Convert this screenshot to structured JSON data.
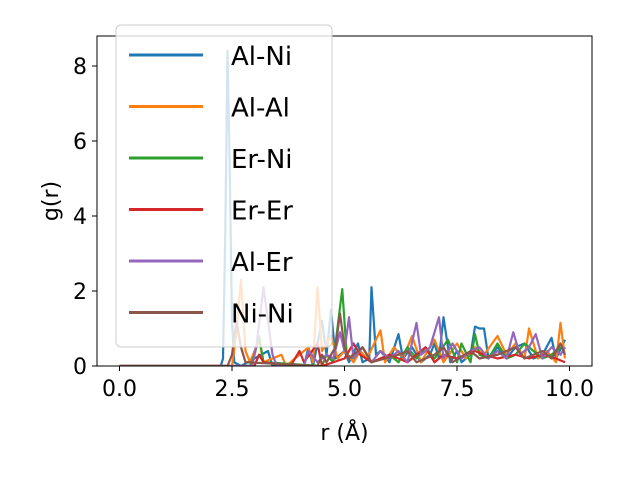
{
  "chart_data": {
    "type": "line",
    "xlabel": "r (Å)",
    "ylabel": "g(r)",
    "xlim": [
      -0.5,
      10.5
    ],
    "ylim": [
      0,
      8.8
    ],
    "xticks": [
      0.0,
      2.5,
      5.0,
      7.5,
      10.0
    ],
    "xtick_labels": [
      "0.0",
      "2.5",
      "5.0",
      "7.5",
      "10.0"
    ],
    "yticks": [
      0,
      2,
      4,
      6,
      8
    ],
    "ytick_labels": [
      "0",
      "2",
      "4",
      "6",
      "8"
    ],
    "grid": false,
    "legend_position": "upper-left",
    "series": [
      {
        "name": "Al-Ni",
        "color": "#1f77b4",
        "points": [
          [
            0,
            0
          ],
          [
            2.25,
            0
          ],
          [
            2.3,
            0.2
          ],
          [
            2.35,
            3.5
          ],
          [
            2.4,
            8.4
          ],
          [
            2.45,
            5.2
          ],
          [
            2.5,
            1.2
          ],
          [
            2.55,
            0.1
          ],
          [
            2.7,
            0
          ],
          [
            3.3,
            0.4
          ],
          [
            3.4,
            0
          ],
          [
            4.1,
            0
          ],
          [
            4.2,
            0.5
          ],
          [
            4.3,
            0
          ],
          [
            4.5,
            1.2
          ],
          [
            4.6,
            0.3
          ],
          [
            4.7,
            1.5
          ],
          [
            4.8,
            0.2
          ],
          [
            5.0,
            0.4
          ],
          [
            5.1,
            0.1
          ],
          [
            5.3,
            0.6
          ],
          [
            5.4,
            0.1
          ],
          [
            5.55,
            0.2
          ],
          [
            5.6,
            2.1
          ],
          [
            5.7,
            0.3
          ],
          [
            5.8,
            0.4
          ],
          [
            6.0,
            0.1
          ],
          [
            6.2,
            0.85
          ],
          [
            6.3,
            0.2
          ],
          [
            6.5,
            0.5
          ],
          [
            6.7,
            0.1
          ],
          [
            6.9,
            0.3
          ],
          [
            7.0,
            0.6
          ],
          [
            7.1,
            0.2
          ],
          [
            7.2,
            1.3
          ],
          [
            7.35,
            0.1
          ],
          [
            7.5,
            0.4
          ],
          [
            7.6,
            0.1
          ],
          [
            7.8,
            0.3
          ],
          [
            7.9,
            1.05
          ],
          [
            8.0,
            1.0
          ],
          [
            8.1,
            1.0
          ],
          [
            8.2,
            0.2
          ],
          [
            8.4,
            0.5
          ],
          [
            8.6,
            0.2
          ],
          [
            8.8,
            0.5
          ],
          [
            9.0,
            0.6
          ],
          [
            9.2,
            0.2
          ],
          [
            9.4,
            0.3
          ],
          [
            9.6,
            0.75
          ],
          [
            9.7,
            0.2
          ],
          [
            9.9,
            0.7
          ]
        ]
      },
      {
        "name": "Al-Al",
        "color": "#ff7f0e",
        "points": [
          [
            0,
            0
          ],
          [
            2.5,
            0
          ],
          [
            2.6,
            0.9
          ],
          [
            2.7,
            2.3
          ],
          [
            2.8,
            0.4
          ],
          [
            2.9,
            0.1
          ],
          [
            3.1,
            0.7
          ],
          [
            3.2,
            0.1
          ],
          [
            3.6,
            0.3
          ],
          [
            3.7,
            0
          ],
          [
            4.2,
            0.5
          ],
          [
            4.3,
            0.1
          ],
          [
            4.4,
            2.1
          ],
          [
            4.5,
            0.4
          ],
          [
            4.7,
            0.8
          ],
          [
            4.85,
            0.2
          ],
          [
            5.0,
            0.4
          ],
          [
            5.2,
            0.1
          ],
          [
            5.35,
            0.4
          ],
          [
            5.5,
            0.2
          ],
          [
            5.8,
            0.95
          ],
          [
            5.9,
            0.1
          ],
          [
            6.1,
            0.5
          ],
          [
            6.3,
            0.2
          ],
          [
            6.5,
            0.8
          ],
          [
            6.7,
            0.1
          ],
          [
            6.9,
            0.5
          ],
          [
            7.0,
            0.7
          ],
          [
            7.2,
            0.1
          ],
          [
            7.5,
            0.6
          ],
          [
            7.7,
            0.2
          ],
          [
            7.9,
            0.5
          ],
          [
            8.1,
            0.3
          ],
          [
            8.4,
            0.8
          ],
          [
            8.6,
            0.3
          ],
          [
            8.8,
            0.6
          ],
          [
            9.0,
            0.2
          ],
          [
            9.1,
            1.0
          ],
          [
            9.3,
            0.2
          ],
          [
            9.5,
            0.4
          ],
          [
            9.7,
            0.1
          ],
          [
            9.8,
            1.15
          ],
          [
            9.9,
            0.2
          ]
        ]
      },
      {
        "name": "Er-Ni",
        "color": "#2ca02c",
        "points": [
          [
            0,
            0
          ],
          [
            2.9,
            0
          ],
          [
            3.0,
            0.3
          ],
          [
            3.1,
            0.8
          ],
          [
            3.2,
            0.1
          ],
          [
            4.5,
            0
          ],
          [
            4.6,
            0.3
          ],
          [
            4.75,
            0.1
          ],
          [
            4.95,
            2.05
          ],
          [
            5.05,
            0.3
          ],
          [
            5.2,
            0.2
          ],
          [
            5.4,
            0.5
          ],
          [
            5.6,
            0.1
          ],
          [
            6.0,
            0.3
          ],
          [
            6.2,
            0.1
          ],
          [
            6.4,
            0.5
          ],
          [
            6.6,
            0.2
          ],
          [
            6.8,
            0.5
          ],
          [
            7.0,
            0.2
          ],
          [
            7.3,
            0.7
          ],
          [
            7.5,
            0.1
          ],
          [
            7.6,
            0.6
          ],
          [
            7.8,
            0.1
          ],
          [
            7.9,
            0.85
          ],
          [
            8.0,
            0.3
          ],
          [
            8.2,
            0.2
          ],
          [
            8.4,
            0.6
          ],
          [
            8.6,
            0.2
          ],
          [
            8.8,
            0.3
          ],
          [
            9.0,
            0.6
          ],
          [
            9.2,
            0.4
          ],
          [
            9.4,
            0.2
          ],
          [
            9.6,
            0.3
          ],
          [
            9.8,
            0.5
          ]
        ]
      },
      {
        "name": "Er-Er",
        "color": "#d62728",
        "points": [
          [
            0,
            0
          ],
          [
            3.0,
            0
          ],
          [
            3.1,
            0.3
          ],
          [
            3.2,
            0.1
          ],
          [
            3.8,
            0
          ],
          [
            4.0,
            0.4
          ],
          [
            4.1,
            0.1
          ],
          [
            4.4,
            0.6
          ],
          [
            4.5,
            0
          ],
          [
            5.0,
            0.2
          ],
          [
            5.2,
            0.6
          ],
          [
            5.35,
            0.3
          ],
          [
            5.6,
            0.1
          ],
          [
            5.8,
            0.2
          ],
          [
            6.0,
            0.3
          ],
          [
            6.4,
            0.1
          ],
          [
            6.8,
            0.5
          ],
          [
            7.0,
            0.1
          ],
          [
            7.2,
            0.3
          ],
          [
            7.5,
            0.2
          ],
          [
            7.9,
            0.4
          ],
          [
            8.1,
            0.3
          ],
          [
            8.4,
            0.2
          ],
          [
            8.8,
            0.3
          ],
          [
            9.1,
            0.2
          ],
          [
            9.4,
            0.3
          ],
          [
            9.7,
            0.2
          ],
          [
            9.9,
            0.1
          ]
        ]
      },
      {
        "name": "Al-Er",
        "color": "#9467bd",
        "points": [
          [
            0,
            0
          ],
          [
            2.95,
            0
          ],
          [
            3.05,
            0.6
          ],
          [
            3.2,
            2.1
          ],
          [
            3.3,
            1.2
          ],
          [
            3.4,
            0.3
          ],
          [
            3.5,
            0
          ],
          [
            4.1,
            0
          ],
          [
            4.2,
            0.4
          ],
          [
            4.4,
            0.1
          ],
          [
            4.6,
            0.3
          ],
          [
            4.75,
            0.2
          ],
          [
            4.9,
            0.9
          ],
          [
            5.0,
            0.4
          ],
          [
            5.1,
            1.3
          ],
          [
            5.2,
            0.2
          ],
          [
            5.4,
            0.5
          ],
          [
            5.6,
            0.1
          ],
          [
            5.8,
            0.4
          ],
          [
            6.0,
            0.2
          ],
          [
            6.2,
            0.4
          ],
          [
            6.4,
            0.1
          ],
          [
            6.6,
            1.15
          ],
          [
            6.7,
            0.3
          ],
          [
            6.9,
            0.5
          ],
          [
            7.1,
            1.3
          ],
          [
            7.2,
            0.2
          ],
          [
            7.4,
            0.6
          ],
          [
            7.6,
            0.2
          ],
          [
            7.8,
            0.4
          ],
          [
            8.0,
            0.5
          ],
          [
            8.2,
            0.2
          ],
          [
            8.4,
            0.4
          ],
          [
            8.6,
            0.2
          ],
          [
            8.75,
            0.9
          ],
          [
            8.9,
            0.3
          ],
          [
            9.1,
            0.5
          ],
          [
            9.25,
            0.85
          ],
          [
            9.4,
            0.2
          ],
          [
            9.6,
            0.5
          ],
          [
            9.8,
            0.3
          ],
          [
            9.9,
            0.5
          ]
        ]
      },
      {
        "name": "Ni-Ni",
        "color": "#8c564b",
        "points": [
          [
            0,
            0
          ],
          [
            2.4,
            0
          ],
          [
            2.5,
            0.3
          ],
          [
            2.6,
            1.2
          ],
          [
            2.7,
            0.5
          ],
          [
            2.8,
            0.1
          ],
          [
            4.4,
            0
          ],
          [
            4.5,
            0.3
          ],
          [
            4.6,
            0.1
          ],
          [
            4.8,
            0.5
          ],
          [
            4.9,
            1.4
          ],
          [
            5.0,
            0.5
          ],
          [
            5.1,
            0.2
          ],
          [
            5.4,
            0.5
          ],
          [
            5.6,
            0.1
          ],
          [
            6.2,
            0.3
          ],
          [
            6.4,
            0.4
          ],
          [
            6.6,
            0.1
          ],
          [
            7.0,
            0.3
          ],
          [
            7.2,
            0.5
          ],
          [
            7.4,
            0.1
          ],
          [
            7.8,
            0.4
          ],
          [
            8.0,
            0.2
          ],
          [
            8.4,
            0.3
          ],
          [
            8.8,
            0.5
          ],
          [
            9.0,
            0.2
          ],
          [
            9.4,
            0.4
          ],
          [
            9.6,
            0.2
          ],
          [
            9.8,
            0.6
          ],
          [
            9.9,
            0.3
          ]
        ]
      }
    ]
  }
}
